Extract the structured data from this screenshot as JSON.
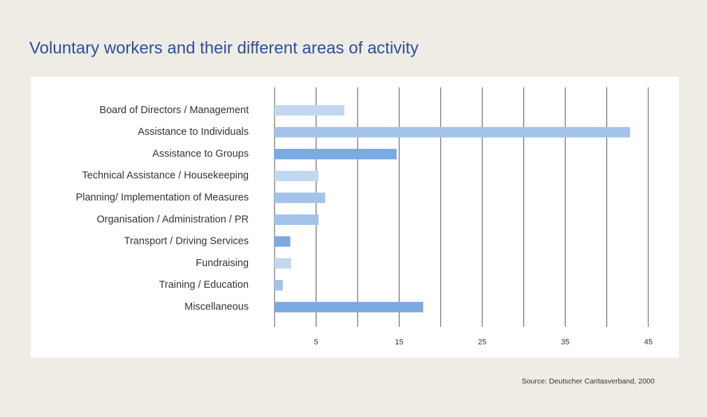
{
  "chart_data": {
    "type": "barh",
    "title": "Voluntary workers and their different areas of activity",
    "categories": [
      "Board of Directors / Management",
      "Assistance to Individuals",
      "Assistance to Groups",
      "Technical Assistance / Housekeeping",
      "Planning/ Implementation of Measures",
      "Organisation / Administration / PR",
      "Transport / Driving Services",
      "Fundraising",
      "Training / Education",
      "Miscellaneous"
    ],
    "values": [
      8.4,
      42.8,
      14.7,
      5.3,
      6.1,
      5.3,
      1.9,
      2,
      1,
      17.9
    ],
    "colors": [
      "#c3d7f0",
      "#a4c3ea",
      "#7ba9e0",
      "#c3d7f0",
      "#a4c3ea",
      "#a4c3ea",
      "#7ba9e0",
      "#c3d7f0",
      "#a4c3ea",
      "#7ba9e0"
    ],
    "xlim": [
      0,
      45
    ],
    "xticks": [
      5,
      15,
      25,
      35,
      45
    ],
    "minor_xticks": [
      0,
      10,
      20,
      30,
      40
    ],
    "grid": true,
    "source": "Source: Deutscher Caritasverband, 2000"
  }
}
